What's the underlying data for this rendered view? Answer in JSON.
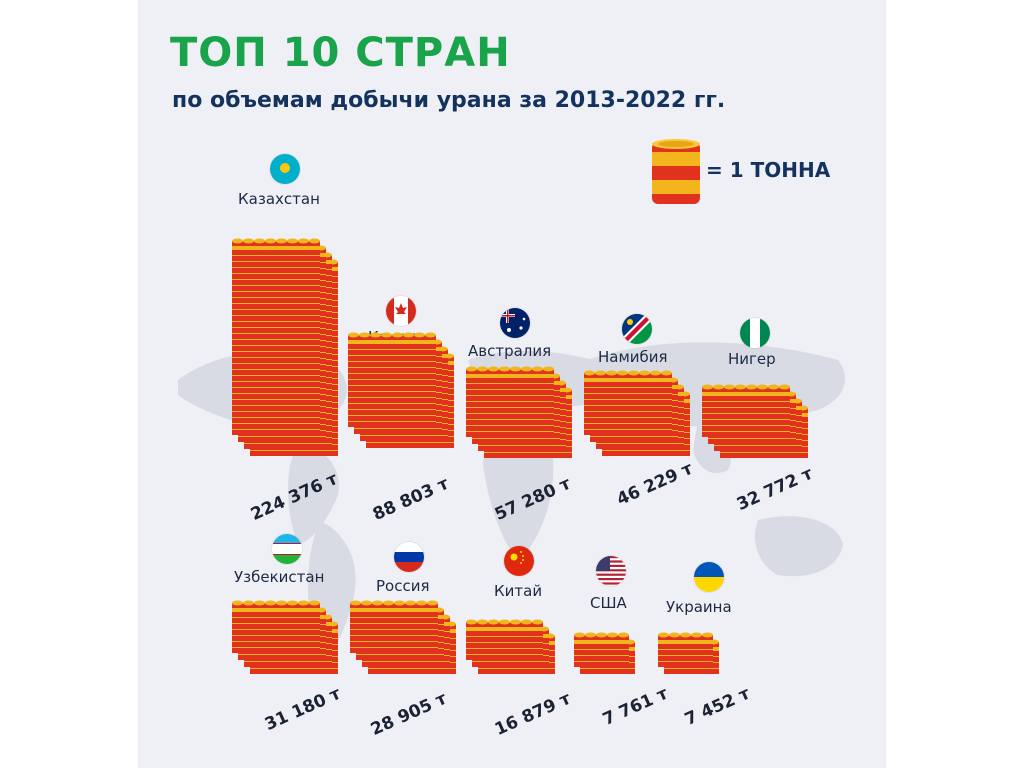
{
  "title": "ТОП 10 СТРАН",
  "subtitle": "по объемам добычи урана за 2013-2022 гг.",
  "legend": {
    "text": "= 1 ТОННА",
    "icon": "barrel-icon"
  },
  "colors": {
    "title_green": "#19a34a",
    "subtitle_navy": "#14325e",
    "barrel_red": "#e0321e",
    "barrel_yellow": "#f2b61c",
    "map_gray": "#d8dbe3"
  },
  "chart_data": {
    "type": "bar",
    "title": "ТОП 10 СТРАН",
    "unit": "т",
    "categories": [
      "Казахстан",
      "Канада",
      "Австралия",
      "Намибия",
      "Нигер",
      "Узбекистан",
      "Россия",
      "Китай",
      "США",
      "Украина"
    ],
    "values": [
      224376,
      88803,
      57280,
      46229,
      32772,
      31180,
      28905,
      16879,
      7761,
      7452
    ],
    "value_labels": [
      "224 376 т",
      "88 803 т",
      "57 280 т",
      "46  229 т",
      "32 772 т",
      "31 180 т",
      "28 905 т",
      "16 879 т",
      "7 761 т",
      "7 452 т"
    ],
    "flags": [
      "kazakhstan-flag",
      "canada-flag",
      "australia-flag",
      "namibia-flag",
      "nigeria-flag",
      "uzbekistan-flag",
      "russia-flag",
      "china-flag",
      "usa-flag",
      "ukraine-flag"
    ]
  }
}
